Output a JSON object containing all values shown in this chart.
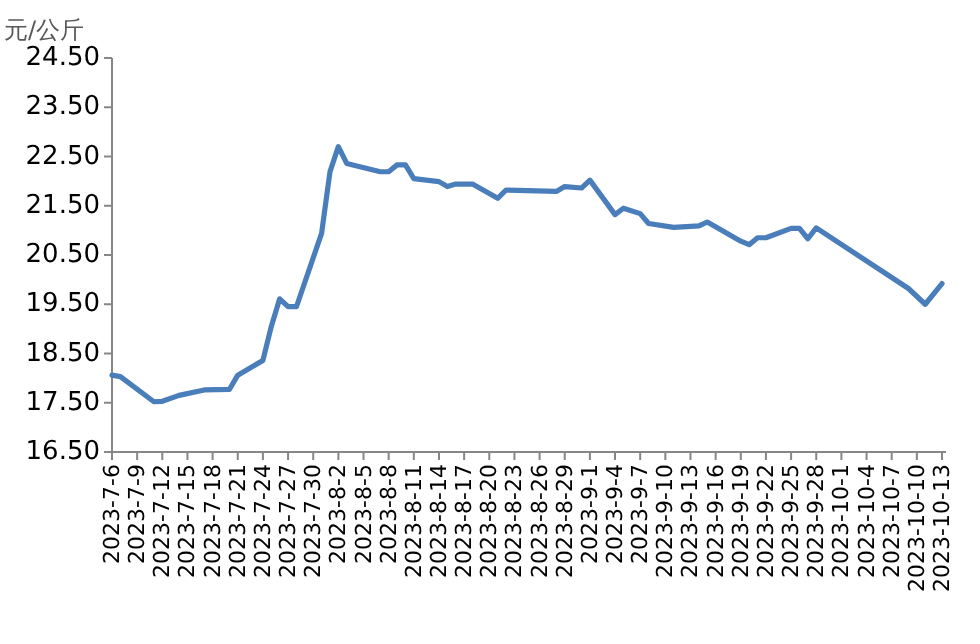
{
  "chart_data": {
    "type": "line",
    "ylabel": "元/公斤",
    "color": "#4a7ebb",
    "x": [
      "2023-07-06",
      "2023-07-07",
      "2023-07-11",
      "2023-07-12",
      "2023-07-14",
      "2023-07-17",
      "2023-07-20",
      "2023-07-21",
      "2023-07-24",
      "2023-07-25",
      "2023-07-26",
      "2023-07-27",
      "2023-07-28",
      "2023-07-31",
      "2023-08-01",
      "2023-08-02",
      "2023-08-03",
      "2023-08-07",
      "2023-08-08",
      "2023-08-09",
      "2023-08-10",
      "2023-08-11",
      "2023-08-14",
      "2023-08-15",
      "2023-08-16",
      "2023-08-18",
      "2023-08-21",
      "2023-08-22",
      "2023-08-28",
      "2023-08-29",
      "2023-08-31",
      "2023-09-01",
      "2023-09-04",
      "2023-09-05",
      "2023-09-07",
      "2023-09-08",
      "2023-09-11",
      "2023-09-14",
      "2023-09-15",
      "2023-09-19",
      "2023-09-20",
      "2023-09-21",
      "2023-09-22",
      "2023-09-25",
      "2023-09-26",
      "2023-09-27",
      "2023-09-28",
      "2023-10-09",
      "2023-10-11",
      "2023-10-13"
    ],
    "values": [
      18.06,
      18.03,
      17.52,
      17.53,
      17.65,
      17.76,
      17.77,
      18.06,
      18.36,
      19.05,
      19.61,
      19.45,
      19.45,
      20.94,
      22.19,
      22.7,
      22.36,
      22.19,
      22.19,
      22.33,
      22.33,
      22.05,
      21.99,
      21.89,
      21.94,
      21.94,
      21.65,
      21.82,
      21.79,
      21.89,
      21.86,
      22.02,
      21.32,
      21.45,
      21.34,
      21.14,
      21.06,
      21.09,
      21.17,
      20.78,
      20.71,
      20.85,
      20.85,
      21.04,
      21.04,
      20.83,
      21.05,
      19.82,
      19.5,
      19.92
    ],
    "xlim": [
      "2023-07-06",
      "2023-10-13"
    ],
    "xticks": [
      {
        "value": "2023-07-06",
        "label": "2023-7-6"
      },
      {
        "value": "2023-07-09",
        "label": "2023-7-9"
      },
      {
        "value": "2023-07-12",
        "label": "2023-7-12"
      },
      {
        "value": "2023-07-15",
        "label": "2023-7-15"
      },
      {
        "value": "2023-07-18",
        "label": "2023-7-18"
      },
      {
        "value": "2023-07-21",
        "label": "2023-7-21"
      },
      {
        "value": "2023-07-24",
        "label": "2023-7-24"
      },
      {
        "value": "2023-07-27",
        "label": "2023-7-27"
      },
      {
        "value": "2023-07-30",
        "label": "2023-7-30"
      },
      {
        "value": "2023-08-02",
        "label": "2023-8-2"
      },
      {
        "value": "2023-08-05",
        "label": "2023-8-5"
      },
      {
        "value": "2023-08-08",
        "label": "2023-8-8"
      },
      {
        "value": "2023-08-11",
        "label": "2023-8-11"
      },
      {
        "value": "2023-08-14",
        "label": "2023-8-14"
      },
      {
        "value": "2023-08-17",
        "label": "2023-8-17"
      },
      {
        "value": "2023-08-20",
        "label": "2023-8-20"
      },
      {
        "value": "2023-08-23",
        "label": "2023-8-23"
      },
      {
        "value": "2023-08-26",
        "label": "2023-8-26"
      },
      {
        "value": "2023-08-29",
        "label": "2023-8-29"
      },
      {
        "value": "2023-09-01",
        "label": "2023-9-1"
      },
      {
        "value": "2023-09-04",
        "label": "2023-9-4"
      },
      {
        "value": "2023-09-07",
        "label": "2023-9-7"
      },
      {
        "value": "2023-09-10",
        "label": "2023-9-10"
      },
      {
        "value": "2023-09-13",
        "label": "2023-9-13"
      },
      {
        "value": "2023-09-16",
        "label": "2023-9-16"
      },
      {
        "value": "2023-09-19",
        "label": "2023-9-19"
      },
      {
        "value": "2023-09-22",
        "label": "2023-9-22"
      },
      {
        "value": "2023-09-25",
        "label": "2023-9-25"
      },
      {
        "value": "2023-09-28",
        "label": "2023-9-28"
      },
      {
        "value": "2023-10-01",
        "label": "2023-10-1"
      },
      {
        "value": "2023-10-04",
        "label": "2023-10-4"
      },
      {
        "value": "2023-10-07",
        "label": "2023-10-7"
      },
      {
        "value": "2023-10-10",
        "label": "2023-10-10"
      },
      {
        "value": "2023-10-13",
        "label": "2023-10-13"
      }
    ],
    "ylim": [
      16.5,
      24.5
    ],
    "yticks": [
      {
        "value": 16.5,
        "label": "16.50"
      },
      {
        "value": 17.5,
        "label": "17.50"
      },
      {
        "value": 18.5,
        "label": "18.50"
      },
      {
        "value": 19.5,
        "label": "19.50"
      },
      {
        "value": 20.5,
        "label": "20.50"
      },
      {
        "value": 21.5,
        "label": "21.50"
      },
      {
        "value": 22.5,
        "label": "22.50"
      },
      {
        "value": 23.5,
        "label": "23.50"
      },
      {
        "value": 24.5,
        "label": "24.50"
      }
    ]
  }
}
